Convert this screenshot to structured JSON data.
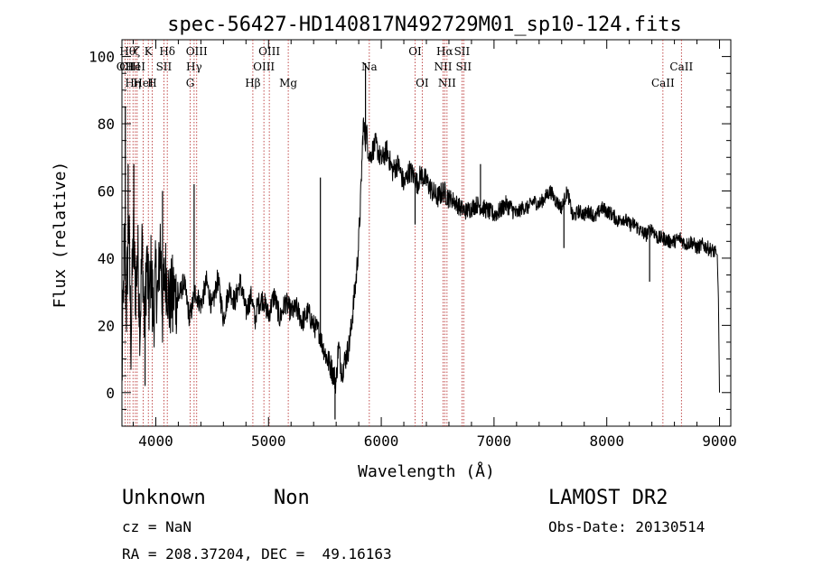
{
  "chart_data": {
    "type": "line",
    "title": "spec-56427-HD140817N492729M01_sp10-124.fits",
    "xlabel": "Wavelength (Å)",
    "ylabel": "Flux (relative)",
    "xlim": [
      3700,
      9100
    ],
    "ylim": [
      -10,
      105
    ],
    "xticks": [
      4000,
      5000,
      6000,
      7000,
      8000,
      9000
    ],
    "yticks": [
      0,
      20,
      40,
      60,
      80,
      100
    ],
    "xticks_labels": [
      "4000",
      "5000",
      "6000",
      "7000",
      "8000",
      "9000"
    ],
    "yticks_labels": [
      "0",
      "20",
      "40",
      "60",
      "80",
      "100"
    ],
    "grid": false,
    "series": [
      {
        "name": "",
        "color": "#000000",
        "x": [
          3700,
          3720,
          3740,
          3760,
          3780,
          3800,
          3820,
          3840,
          3860,
          3880,
          3900,
          3920,
          3940,
          3960,
          3980,
          4000,
          4020,
          4040,
          4060,
          4080,
          4100,
          4120,
          4150,
          4200,
          4250,
          4300,
          4350,
          4400,
          4450,
          4500,
          4550,
          4600,
          4650,
          4700,
          4750,
          4800,
          4850,
          4880,
          4900,
          4950,
          5000,
          5050,
          5100,
          5150,
          5200,
          5250,
          5300,
          5350,
          5400,
          5450,
          5480,
          5500,
          5520,
          5550,
          5580,
          5600,
          5620,
          5650,
          5680,
          5700,
          5720,
          5750,
          5780,
          5800,
          5820,
          5840,
          5860,
          5870,
          5880,
          5900,
          5920,
          5950,
          6000,
          6050,
          6100,
          6150,
          6200,
          6250,
          6300,
          6320,
          6350,
          6400,
          6450,
          6500,
          6550,
          6600,
          6650,
          6700,
          6750,
          6800,
          6850,
          6900,
          6950,
          7000,
          7050,
          7100,
          7150,
          7200,
          7250,
          7300,
          7350,
          7400,
          7450,
          7500,
          7550,
          7600,
          7650,
          7700,
          7750,
          7800,
          7850,
          7900,
          7950,
          8000,
          8050,
          8100,
          8150,
          8200,
          8250,
          8300,
          8350,
          8400,
          8450,
          8500,
          8550,
          8600,
          8650,
          8700,
          8750,
          8800,
          8850,
          8900,
          8950,
          8980,
          8990,
          9000
        ],
        "y": [
          3,
          45,
          25,
          52,
          15,
          48,
          30,
          42,
          20,
          45,
          18,
          40,
          26,
          38,
          22,
          35,
          28,
          46,
          24,
          36,
          34,
          26,
          30,
          28,
          33,
          22,
          30,
          26,
          33,
          25,
          34,
          22,
          31,
          27,
          33,
          24,
          29,
          21,
          26,
          28,
          23,
          29,
          22,
          27,
          24,
          25,
          21,
          24,
          20,
          18,
          14,
          12,
          10,
          8,
          5,
          3,
          14,
          6,
          10,
          12,
          15,
          25,
          35,
          45,
          60,
          80,
          75,
          78,
          73,
          70,
          72,
          74,
          69,
          72,
          66,
          68,
          62,
          66,
          64,
          62,
          65,
          63,
          60,
          58,
          60,
          58,
          57,
          55,
          54,
          55,
          56,
          55,
          54,
          53,
          54,
          56,
          55,
          53,
          55,
          55,
          57,
          56,
          58,
          60,
          57,
          55,
          60,
          52,
          54,
          53,
          54,
          52,
          55,
          54,
          53,
          51,
          52,
          50,
          50,
          48,
          47,
          49,
          46,
          46,
          45,
          45,
          46,
          44,
          45,
          43,
          44,
          43,
          42,
          41,
          28,
          0
        ]
      }
    ],
    "spikes": [
      {
        "x": 3730,
        "y": 85
      },
      {
        "x": 3755,
        "y": 68
      },
      {
        "x": 3805,
        "y": 68
      },
      {
        "x": 3905,
        "y": 2
      },
      {
        "x": 3970,
        "y": 18
      },
      {
        "x": 4060,
        "y": 60
      },
      {
        "x": 4150,
        "y": 18
      },
      {
        "x": 4340,
        "y": 62
      },
      {
        "x": 5460,
        "y": 64
      },
      {
        "x": 5590,
        "y": -8
      },
      {
        "x": 5860,
        "y": 98
      },
      {
        "x": 6300,
        "y": 50
      },
      {
        "x": 6880,
        "y": 68
      },
      {
        "x": 7620,
        "y": 43
      },
      {
        "x": 8380,
        "y": 33
      }
    ],
    "lines": [
      {
        "x": 3727,
        "label": "OII",
        "row": 1
      },
      {
        "x": 3750,
        "label": "Hθ",
        "row": 0
      },
      {
        "x": 3771,
        "label": "CIII",
        "row": 1
      },
      {
        "x": 3798,
        "label": "Hη",
        "row": 2
      },
      {
        "x": 3819,
        "label": "HeI",
        "row": 1
      },
      {
        "x": 3835,
        "label": "ζ",
        "row": 0
      },
      {
        "x": 3889,
        "label": "HeI",
        "row": 2
      },
      {
        "x": 3934,
        "label": "K",
        "row": 0
      },
      {
        "x": 3968,
        "label": "H",
        "row": 2
      },
      {
        "x": 4072,
        "label": "SII",
        "row": 1
      },
      {
        "x": 4102,
        "label": "Hδ",
        "row": 0
      },
      {
        "x": 4305,
        "label": "G",
        "row": 2
      },
      {
        "x": 4340,
        "label": "Hγ",
        "row": 1
      },
      {
        "x": 4363,
        "label": "OIII",
        "row": 0
      },
      {
        "x": 4861,
        "label": "Hβ",
        "row": 2
      },
      {
        "x": 4959,
        "label": "OIII",
        "row": 1
      },
      {
        "x": 5007,
        "label": "OIII",
        "row": 0
      },
      {
        "x": 5175,
        "label": "Mg",
        "row": 2
      },
      {
        "x": 5894,
        "label": "Na",
        "row": 1
      },
      {
        "x": 6300,
        "label": "OI",
        "row": 0
      },
      {
        "x": 6363,
        "label": "OI",
        "row": 2
      },
      {
        "x": 6548,
        "label": "NII",
        "row": 1
      },
      {
        "x": 6563,
        "label": "Hα",
        "row": 0
      },
      {
        "x": 6583,
        "label": "NII",
        "row": 2
      },
      {
        "x": 6716,
        "label": "SII",
        "row": 0
      },
      {
        "x": 6731,
        "label": "SII",
        "row": 1
      },
      {
        "x": 8498,
        "label": "CaII",
        "row": 2
      },
      {
        "x": 8662,
        "label": "CaII",
        "row": 1
      }
    ]
  },
  "footer": {
    "object_class": "Unknown",
    "subclass": "Non",
    "survey": "LAMOST DR2",
    "redshift": "cz = NaN",
    "obs_date": "Obs-Date: 20130514",
    "coords": "RA = 208.37204, DEC =  49.16163"
  }
}
